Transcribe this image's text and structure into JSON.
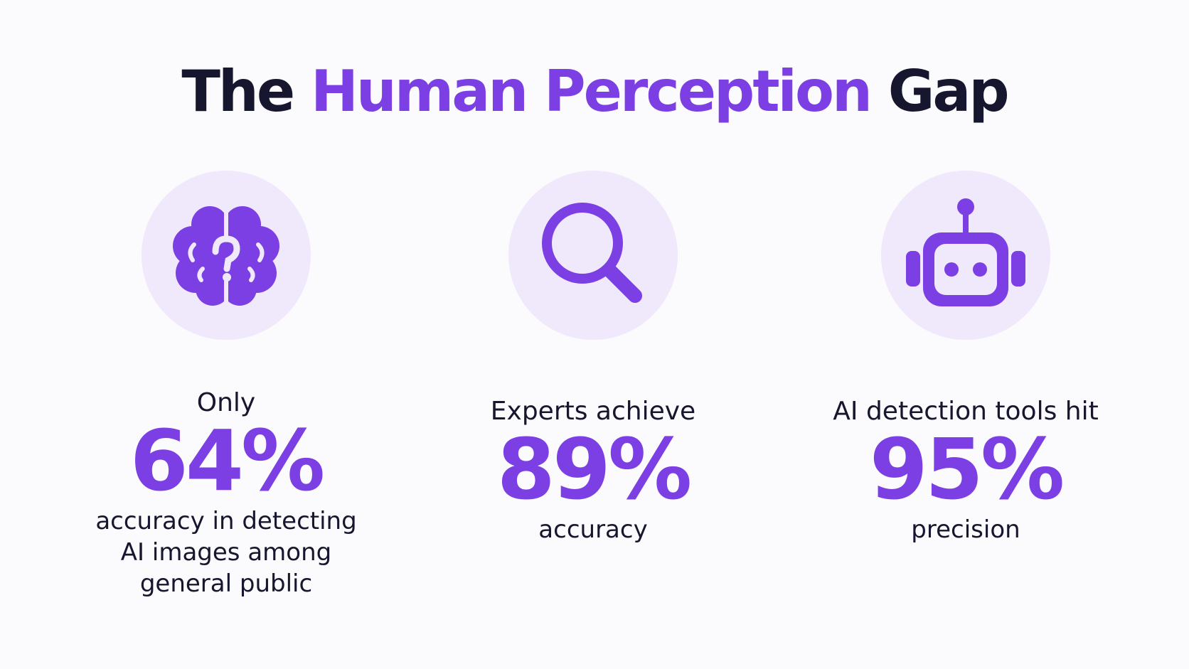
{
  "header": {
    "title": {
      "before": "The",
      "highlight": "Human Perception",
      "after": "Gap"
    }
  },
  "stats": [
    {
      "lead": "Only",
      "value": "64%",
      "caption": [
        "accuracy in detecting",
        "AI images among",
        "general public"
      ]
    },
    {
      "lead": "Experts achieve",
      "value": "89%",
      "caption": [
        "accuracy"
      ]
    },
    {
      "lead": "AI detection tools hit",
      "value": "95%",
      "caption": [
        "precision"
      ]
    }
  ]
}
